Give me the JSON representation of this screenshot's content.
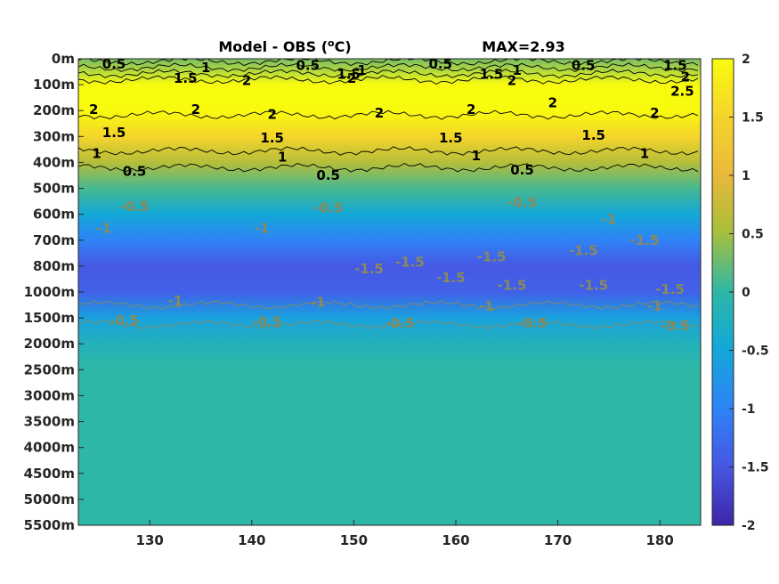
{
  "chart_data": {
    "type": "heatmap",
    "title": "Model - OBS (",
    "title_unit_sup": "o",
    "title_unit_end": "C)",
    "max_label": "MAX=2.93",
    "x_ticks": [
      "130",
      "140",
      "150",
      "160",
      "170",
      "180"
    ],
    "x_tick_values": [
      130,
      140,
      150,
      160,
      170,
      180
    ],
    "xlim": [
      123,
      184
    ],
    "y_ticks": [
      "0m",
      "100m",
      "200m",
      "300m",
      "400m",
      "500m",
      "600m",
      "700m",
      "800m",
      "1000m",
      "1500m",
      "2000m",
      "2500m",
      "3000m",
      "3500m",
      "4000m",
      "4500m",
      "5000m",
      "5500m"
    ],
    "colorbar": {
      "ticks": [
        "2",
        "1.5",
        "1",
        "0.5",
        "0",
        "-0.5",
        "-1",
        "-1.5",
        "-2"
      ],
      "tick_values": [
        2,
        1.5,
        1,
        0.5,
        0,
        -0.5,
        -1,
        -1.5,
        -2
      ],
      "clim": [
        -2,
        2
      ],
      "colormap": "parula"
    },
    "depth_profile": [
      {
        "level": "0m",
        "value": 0.3
      },
      {
        "level": "100m",
        "value": 2.4
      },
      {
        "level": "200m",
        "value": 2.1
      },
      {
        "level": "300m",
        "value": 1.5
      },
      {
        "level": "400m",
        "value": 0.6
      },
      {
        "level": "500m",
        "value": 0.1
      },
      {
        "level": "600m",
        "value": -0.5
      },
      {
        "level": "700m",
        "value": -1.0
      },
      {
        "level": "800m",
        "value": -1.5
      },
      {
        "level": "1000m",
        "value": -1.4
      },
      {
        "level": "1500m",
        "value": -0.6
      },
      {
        "level": "2000m",
        "value": -0.2
      },
      {
        "level": "2500m",
        "value": 0.0
      },
      {
        "level": "3000m",
        "value": 0.0
      },
      {
        "level": "3500m",
        "value": 0.0
      },
      {
        "level": "4000m",
        "value": 0.0
      },
      {
        "level": "4500m",
        "value": 0.0
      },
      {
        "level": "5000m",
        "value": 0.0
      },
      {
        "level": "5500m",
        "value": 0.0
      }
    ],
    "contour_labels": [
      {
        "text": "0.5",
        "x": 126.5,
        "level": 0.2
      },
      {
        "text": "1",
        "x": 135.5,
        "level": 0.35
      },
      {
        "text": "1.5",
        "x": 133.5,
        "level": 0.75
      },
      {
        "text": "2",
        "x": 139.5,
        "level": 0.85
      },
      {
        "text": "0.5",
        "x": 145.5,
        "level": 0.25
      },
      {
        "text": "1.5",
        "x": 149.5,
        "level": 0.6
      },
      {
        "text": "2",
        "x": 149.8,
        "level": 0.75
      },
      {
        "text": "1",
        "x": 150.8,
        "level": 0.45
      },
      {
        "text": "0.5",
        "x": 158.5,
        "level": 0.2
      },
      {
        "text": "1.5",
        "x": 163.5,
        "level": 0.6
      },
      {
        "text": "1",
        "x": 166.0,
        "level": 0.45
      },
      {
        "text": "2",
        "x": 165.5,
        "level": 0.85
      },
      {
        "text": "0.5",
        "x": 172.5,
        "level": 0.25
      },
      {
        "text": "1.5",
        "x": 181.5,
        "level": 0.25
      },
      {
        "text": "2",
        "x": 182.5,
        "level": 0.7
      },
      {
        "text": "2.5",
        "x": 182.2,
        "level": 1.25
      },
      {
        "text": "2",
        "x": 124.5,
        "level": 1.95
      },
      {
        "text": "2",
        "x": 134.5,
        "level": 1.95
      },
      {
        "text": "2",
        "x": 142.0,
        "level": 2.15
      },
      {
        "text": "2",
        "x": 152.5,
        "level": 2.1
      },
      {
        "text": "2",
        "x": 161.5,
        "level": 1.95
      },
      {
        "text": "2",
        "x": 169.5,
        "level": 1.7
      },
      {
        "text": "2",
        "x": 179.5,
        "level": 2.1
      },
      {
        "text": "1.5",
        "x": 126.5,
        "level": 2.85
      },
      {
        "text": "1.5",
        "x": 142.0,
        "level": 3.05
      },
      {
        "text": "1.5",
        "x": 159.5,
        "level": 3.05
      },
      {
        "text": "1.5",
        "x": 173.5,
        "level": 2.95
      },
      {
        "text": "1",
        "x": 124.8,
        "level": 3.65
      },
      {
        "text": "1",
        "x": 143.0,
        "level": 3.8
      },
      {
        "text": "1",
        "x": 162.0,
        "level": 3.75
      },
      {
        "text": "1",
        "x": 178.5,
        "level": 3.65
      },
      {
        "text": "0.5",
        "x": 128.5,
        "level": 4.35
      },
      {
        "text": "0.5",
        "x": 147.5,
        "level": 4.5
      },
      {
        "text": "0.5",
        "x": 166.5,
        "level": 4.3
      },
      {
        "text": "-0.5",
        "x": 128.5,
        "level": 5.7
      },
      {
        "text": "-0.5",
        "x": 147.5,
        "level": 5.75
      },
      {
        "text": "-0.5",
        "x": 166.5,
        "level": 5.55
      },
      {
        "text": "-1",
        "x": 125.5,
        "level": 6.55
      },
      {
        "text": "-1",
        "x": 141.0,
        "level": 6.55
      },
      {
        "text": "-1",
        "x": 175.0,
        "level": 6.2
      },
      {
        "text": "-1.5",
        "x": 178.5,
        "level": 7.0
      },
      {
        "text": "-1.5",
        "x": 151.5,
        "level": 8.1
      },
      {
        "text": "-1.5",
        "x": 155.5,
        "level": 7.85
      },
      {
        "text": "-1.5",
        "x": 159.5,
        "level": 8.45
      },
      {
        "text": "-1.5",
        "x": 163.5,
        "level": 7.65
      },
      {
        "text": "-1.5",
        "x": 172.5,
        "level": 7.4
      },
      {
        "text": "-1.5",
        "x": 165.5,
        "level": 8.75
      },
      {
        "text": "-1.5",
        "x": 173.5,
        "level": 8.75
      },
      {
        "text": "-1.5",
        "x": 181.0,
        "level": 8.9
      },
      {
        "text": "-1",
        "x": 132.5,
        "level": 9.35
      },
      {
        "text": "-1",
        "x": 146.5,
        "level": 9.4
      },
      {
        "text": "-1",
        "x": 163.0,
        "level": 9.55
      },
      {
        "text": "-1",
        "x": 179.5,
        "level": 9.55
      },
      {
        "text": "-0.5",
        "x": 127.5,
        "level": 10.1
      },
      {
        "text": "-0.5",
        "x": 141.5,
        "level": 10.15
      },
      {
        "text": "-0.5",
        "x": 154.5,
        "level": 10.2
      },
      {
        "text": "-0.5",
        "x": 167.5,
        "level": 10.2
      },
      {
        "text": "-0.5",
        "x": 181.5,
        "level": 10.3
      }
    ]
  }
}
